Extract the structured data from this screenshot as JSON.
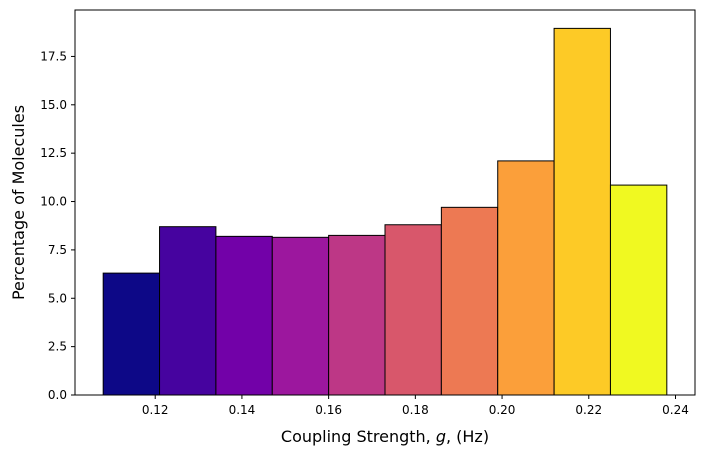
{
  "chart_data": {
    "type": "bar",
    "subtype": "histogram",
    "title": "",
    "xlabel": "Coupling Strength, g, (Hz)",
    "xlabel_parts": [
      "Coupling Strength, ",
      "g",
      ", (Hz)"
    ],
    "ylabel": "Percentage of Molecules",
    "xlim": [
      0.1015,
      0.2445
    ],
    "ylim": [
      0,
      19.9
    ],
    "grid": false,
    "legend": "none",
    "bin_edges": [
      0.108,
      0.121,
      0.134,
      0.147,
      0.16,
      0.173,
      0.186,
      0.199,
      0.212,
      0.225,
      0.238
    ],
    "values": [
      6.3,
      8.7,
      8.2,
      8.15,
      8.25,
      8.8,
      9.7,
      12.1,
      18.95,
      10.85
    ],
    "bar_colors": [
      "#0d0887",
      "#46039f",
      "#7201a8",
      "#9c179e",
      "#bd3786",
      "#d8576b",
      "#ed7953",
      "#fb9f3a",
      "#fdca26",
      "#f0f921"
    ],
    "edge_color": "#000000",
    "x_ticks": [
      {
        "value": 0.12,
        "label": "0.12"
      },
      {
        "value": 0.14,
        "label": "0.14"
      },
      {
        "value": 0.16,
        "label": "0.16"
      },
      {
        "value": 0.18,
        "label": "0.18"
      },
      {
        "value": 0.2,
        "label": "0.20"
      },
      {
        "value": 0.22,
        "label": "0.22"
      },
      {
        "value": 0.24,
        "label": "0.24"
      }
    ],
    "y_ticks": [
      {
        "value": 0.0,
        "label": "0.0"
      },
      {
        "value": 2.5,
        "label": "2.5"
      },
      {
        "value": 5.0,
        "label": "5.0"
      },
      {
        "value": 7.5,
        "label": "7.5"
      },
      {
        "value": 10.0,
        "label": "10.0"
      },
      {
        "value": 12.5,
        "label": "12.5"
      },
      {
        "value": 15.0,
        "label": "15.0"
      },
      {
        "value": 17.5,
        "label": "17.5"
      }
    ]
  }
}
